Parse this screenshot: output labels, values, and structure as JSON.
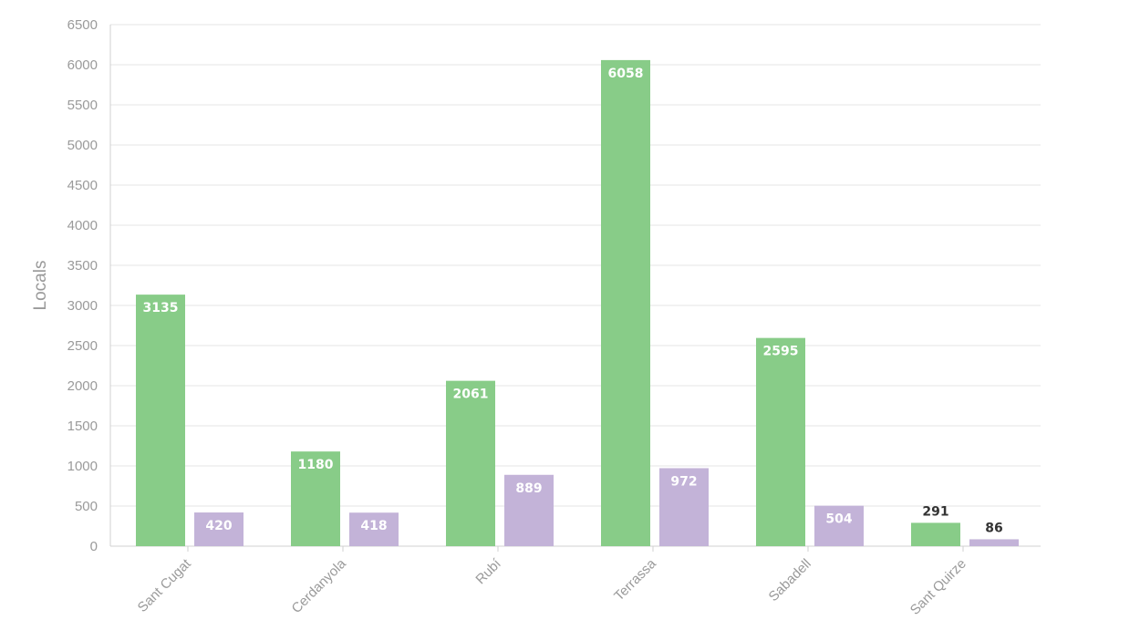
{
  "chart_data": {
    "type": "bar",
    "ylabel": "Locals",
    "xlabel": "",
    "ylim": [
      0,
      6500
    ],
    "yticks": [
      0,
      500,
      1000,
      1500,
      2000,
      2500,
      3000,
      3500,
      4000,
      4500,
      5000,
      5500,
      6000,
      6500
    ],
    "categories": [
      "Sant Cugat",
      "Cerdanyola",
      "Rubí",
      "Terrassa",
      "Sabadell",
      "Sant Quirze"
    ],
    "series": [
      {
        "values": [
          3135,
          1180,
          2061,
          6058,
          2595,
          291
        ],
        "color": "#88cc88"
      },
      {
        "values": [
          420,
          418,
          889,
          972,
          504,
          86
        ],
        "color": "#c3b3d8"
      }
    ],
    "grid": true,
    "legend": "none"
  }
}
